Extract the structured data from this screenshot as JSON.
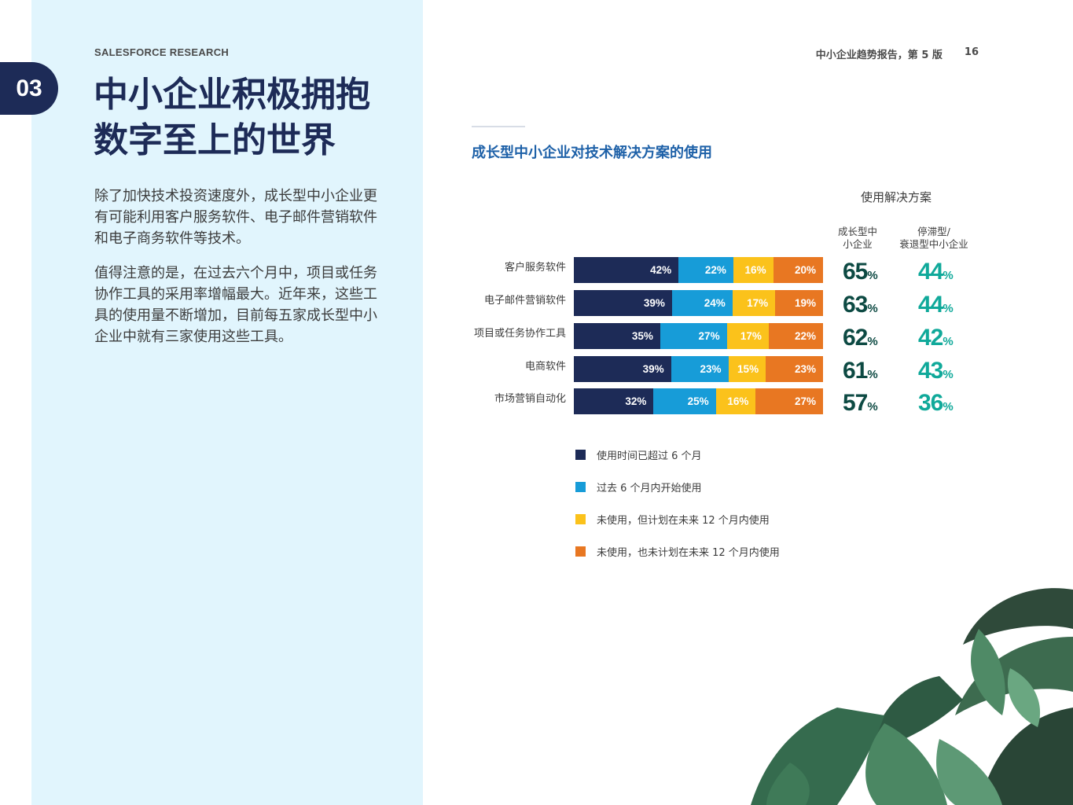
{
  "header": {
    "brand": "SALESFORCE RESEARCH",
    "report_title": "中小企业趋势报告，第 5 版",
    "page_number": "16",
    "chapter_number": "03"
  },
  "title_lines": [
    "中小企业积极拥抱",
    "数字至上的世界"
  ],
  "body": {
    "paragraph1": "除了加快技术投资速度外，成长型中小企业更有可能利用客户服务软件、电子邮件营销软件和电子商务软件等技术。",
    "paragraph2": "值得注意的是，在过去六个月中，项目或任务协作工具的采用率增幅最大。近年来，这些工具的使用量不断增加，目前每五家成长型中小企业中就有三家使用这些工具。"
  },
  "chart_data": {
    "type": "bar",
    "orientation": "horizontal",
    "stacked": true,
    "title": "成长型中小企业对技术解决方案的使用",
    "categories": [
      "客户服务软件",
      "电子邮件营销软件",
      "项目或任务协作工具",
      "电商软件",
      "市场营销自动化"
    ],
    "series": [
      {
        "name": "使用时间已超过 6 个月",
        "color": "#1d2b57",
        "values": [
          42,
          39,
          35,
          39,
          32
        ]
      },
      {
        "name": "过去 6 个月内开始使用",
        "color": "#179cd8",
        "values": [
          22,
          24,
          27,
          23,
          25
        ]
      },
      {
        "name": "未使用，但计划在未来 12 个月内使用",
        "color": "#fbc21b",
        "values": [
          16,
          17,
          17,
          15,
          16
        ]
      },
      {
        "name": "未使用，也未计划在未来 12 个月内使用",
        "color": "#e87722",
        "values": [
          20,
          19,
          22,
          23,
          27
        ]
      }
    ],
    "value_suffix": "%",
    "usage": {
      "heading": "使用解决方案",
      "columns": [
        {
          "label_lines": [
            "成长型中",
            "小企业"
          ],
          "color": "#0d4a43",
          "values": [
            65,
            63,
            62,
            61,
            57
          ]
        },
        {
          "label_lines": [
            "停滞型/",
            "衰退型中小企业"
          ],
          "color": "#10a99a",
          "values": [
            44,
            44,
            42,
            43,
            36
          ]
        }
      ]
    },
    "legend_position": "bottom"
  }
}
